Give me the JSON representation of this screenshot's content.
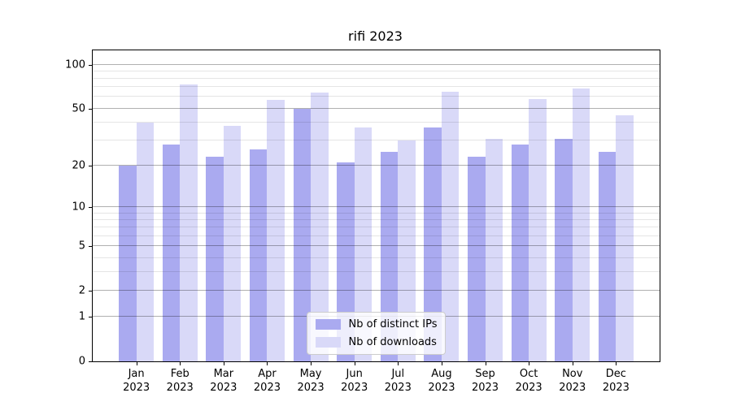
{
  "title": "rifi 2023",
  "chart_data": {
    "type": "bar",
    "title": "rifi 2023",
    "categories": [
      "Jan 2023",
      "Feb 2023",
      "Mar 2023",
      "Apr 2023",
      "May 2023",
      "Jun 2023",
      "Jul 2023",
      "Aug 2023",
      "Sep 2023",
      "Oct 2023",
      "Nov 2023",
      "Dec 2023"
    ],
    "months": [
      "Jan",
      "Feb",
      "Mar",
      "Apr",
      "May",
      "Jun",
      "Jul",
      "Aug",
      "Sep",
      "Oct",
      "Nov",
      "Dec"
    ],
    "year": "2023",
    "series": [
      {
        "name": "Nb of distinct IPs",
        "color": "#aaaaf0",
        "values": [
          20,
          28,
          23,
          26,
          50,
          21,
          25,
          37,
          23,
          28,
          31,
          25
        ]
      },
      {
        "name": "Nb of downloads",
        "color": "#d9d9f8",
        "values": [
          40,
          73,
          38,
          57,
          64,
          37,
          30,
          65,
          31,
          58,
          69,
          45
        ]
      }
    ],
    "xlabel": "",
    "ylabel": "",
    "yscale": "log1p",
    "ylim": [
      0,
      125
    ],
    "y_ticks": [
      100,
      50,
      20,
      10,
      5,
      2,
      1,
      0
    ],
    "y_minor_gridlines": [
      3,
      4,
      6,
      7,
      8,
      9,
      30,
      40,
      60,
      70,
      80,
      90
    ],
    "grid": true,
    "legend_position": "lower center"
  }
}
